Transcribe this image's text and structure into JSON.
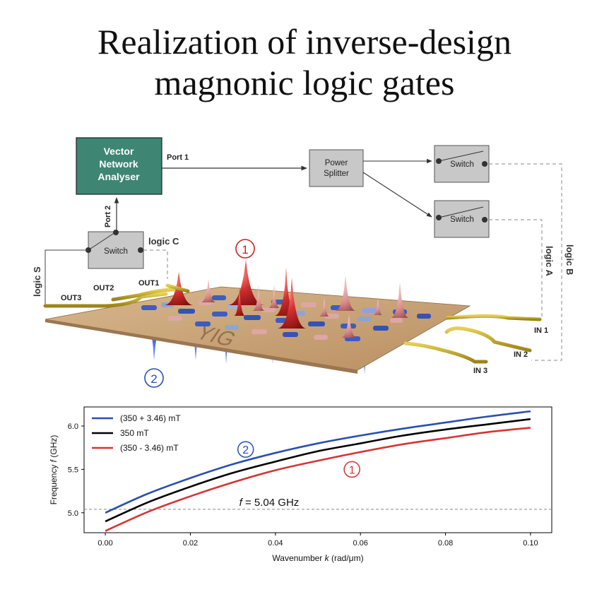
{
  "title": {
    "line1": "Realization of inverse-design",
    "line2": "magnonic logic gates"
  },
  "diagram": {
    "vna_line1": "Vector",
    "vna_line2": "Network",
    "vna_line3": "Analyser",
    "port1": "Port 1",
    "port2": "Port 2",
    "splitter_line1": "Power",
    "splitter_line2": "Splitter",
    "switch_label": "Switch",
    "logic_c": "logic C",
    "logic_s": "logic S",
    "logic_a": "logic A",
    "logic_b": "logic B",
    "out1": "OUT1",
    "out2": "OUT2",
    "out3": "OUT3",
    "in1": "IN 1",
    "in2": "IN 2",
    "in3": "IN 3",
    "material": "YIG",
    "marker1": "1",
    "marker2": "2",
    "colors": {
      "vna_fill": "#3e8574",
      "box_fill": "#c8c8c8",
      "slab": "#c9a57b",
      "antenna": "#c8ad2e",
      "peak_red": "#c62828",
      "peak_blue": "#1f4fbf",
      "marker_red": "#cc2222",
      "marker_blue": "#2a4fb0"
    }
  },
  "chart_data": {
    "type": "line",
    "xlabel_prefix": "Wavenumber",
    "xlabel_var": "k",
    "xlabel_unit": "(rad/μm)",
    "ylabel_prefix": "Frequency",
    "ylabel_var": "f",
    "ylabel_unit": "(GHz)",
    "xlim": [
      -0.005,
      0.105
    ],
    "ylim": [
      4.77,
      6.22
    ],
    "xticks": [
      0.0,
      0.02,
      0.04,
      0.06,
      0.08,
      0.1
    ],
    "xtick_labels": [
      "0.00",
      "0.02",
      "0.04",
      "0.06",
      "0.08",
      "0.10"
    ],
    "yticks": [
      5.0,
      5.5,
      6.0
    ],
    "ytick_labels": [
      "5.0",
      "5.5",
      "6.0"
    ],
    "hline": {
      "y": 5.04,
      "label_var": "f",
      "label_text": " = 5.04 GHz"
    },
    "legend_position": "top-left",
    "series": [
      {
        "name": "(350 + 3.46) mT",
        "color": "#2a4fb0",
        "x": [
          0,
          0.01,
          0.02,
          0.03,
          0.04,
          0.05,
          0.06,
          0.07,
          0.08,
          0.09,
          0.1
        ],
        "y": [
          5.0,
          5.22,
          5.4,
          5.56,
          5.69,
          5.8,
          5.89,
          5.97,
          6.04,
          6.11,
          6.17
        ]
      },
      {
        "name": "350 mT",
        "color": "#000000",
        "x": [
          0,
          0.01,
          0.02,
          0.03,
          0.04,
          0.05,
          0.06,
          0.07,
          0.08,
          0.09,
          0.1
        ],
        "y": [
          4.9,
          5.12,
          5.3,
          5.46,
          5.59,
          5.71,
          5.8,
          5.89,
          5.96,
          6.02,
          6.08
        ]
      },
      {
        "name": "(350 - 3.46) mT",
        "color": "#d43535",
        "x": [
          0,
          0.01,
          0.02,
          0.03,
          0.04,
          0.05,
          0.06,
          0.07,
          0.08,
          0.09,
          0.1
        ],
        "y": [
          4.79,
          5.01,
          5.19,
          5.35,
          5.49,
          5.6,
          5.7,
          5.79,
          5.86,
          5.93,
          5.98
        ]
      }
    ],
    "annotations": [
      {
        "text": "2",
        "x": 0.033,
        "y": 5.73,
        "color": "#2a4fb0"
      },
      {
        "text": "1",
        "x": 0.058,
        "y": 5.5,
        "color": "#d43535"
      }
    ]
  }
}
